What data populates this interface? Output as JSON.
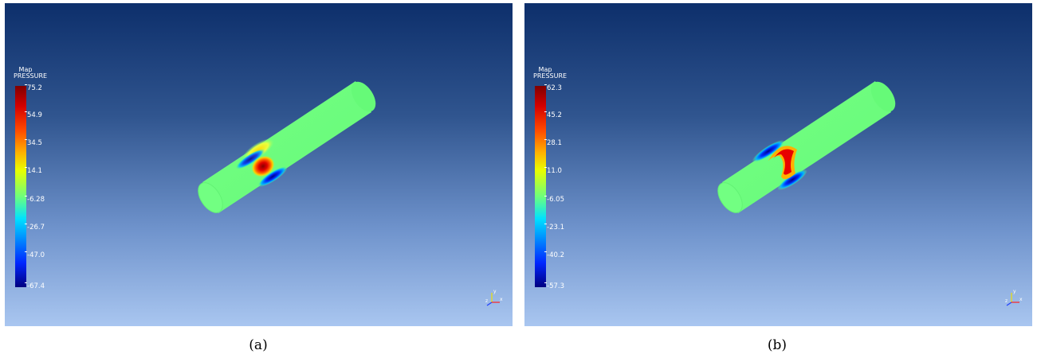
{
  "panels": [
    {
      "id": "a",
      "legend": {
        "title_line1": "Map",
        "title_line2": "PRESSURE",
        "ticks": [
          "75.2",
          "54.9",
          "34.5",
          "14.1",
          "-6.28",
          "-26.7",
          "-47.0",
          "-67.4"
        ]
      },
      "caption": "(a)",
      "axes": {
        "x": "x",
        "y": "y",
        "z": "z"
      }
    },
    {
      "id": "b",
      "legend": {
        "title_line1": "Map",
        "title_line2": "PRESSURE",
        "ticks": [
          "62.3",
          "45.2",
          "28.1",
          "11.0",
          "-6.05",
          "-23.1",
          "-40.2",
          "-57.3"
        ]
      },
      "caption": "(b)",
      "axes": {
        "x": "x",
        "y": "y",
        "z": "z"
      }
    }
  ],
  "colors": {
    "background_top": "#0d2f6b",
    "background_bottom": "#a9c6f0",
    "cylinder_base": "#6dff7c"
  }
}
